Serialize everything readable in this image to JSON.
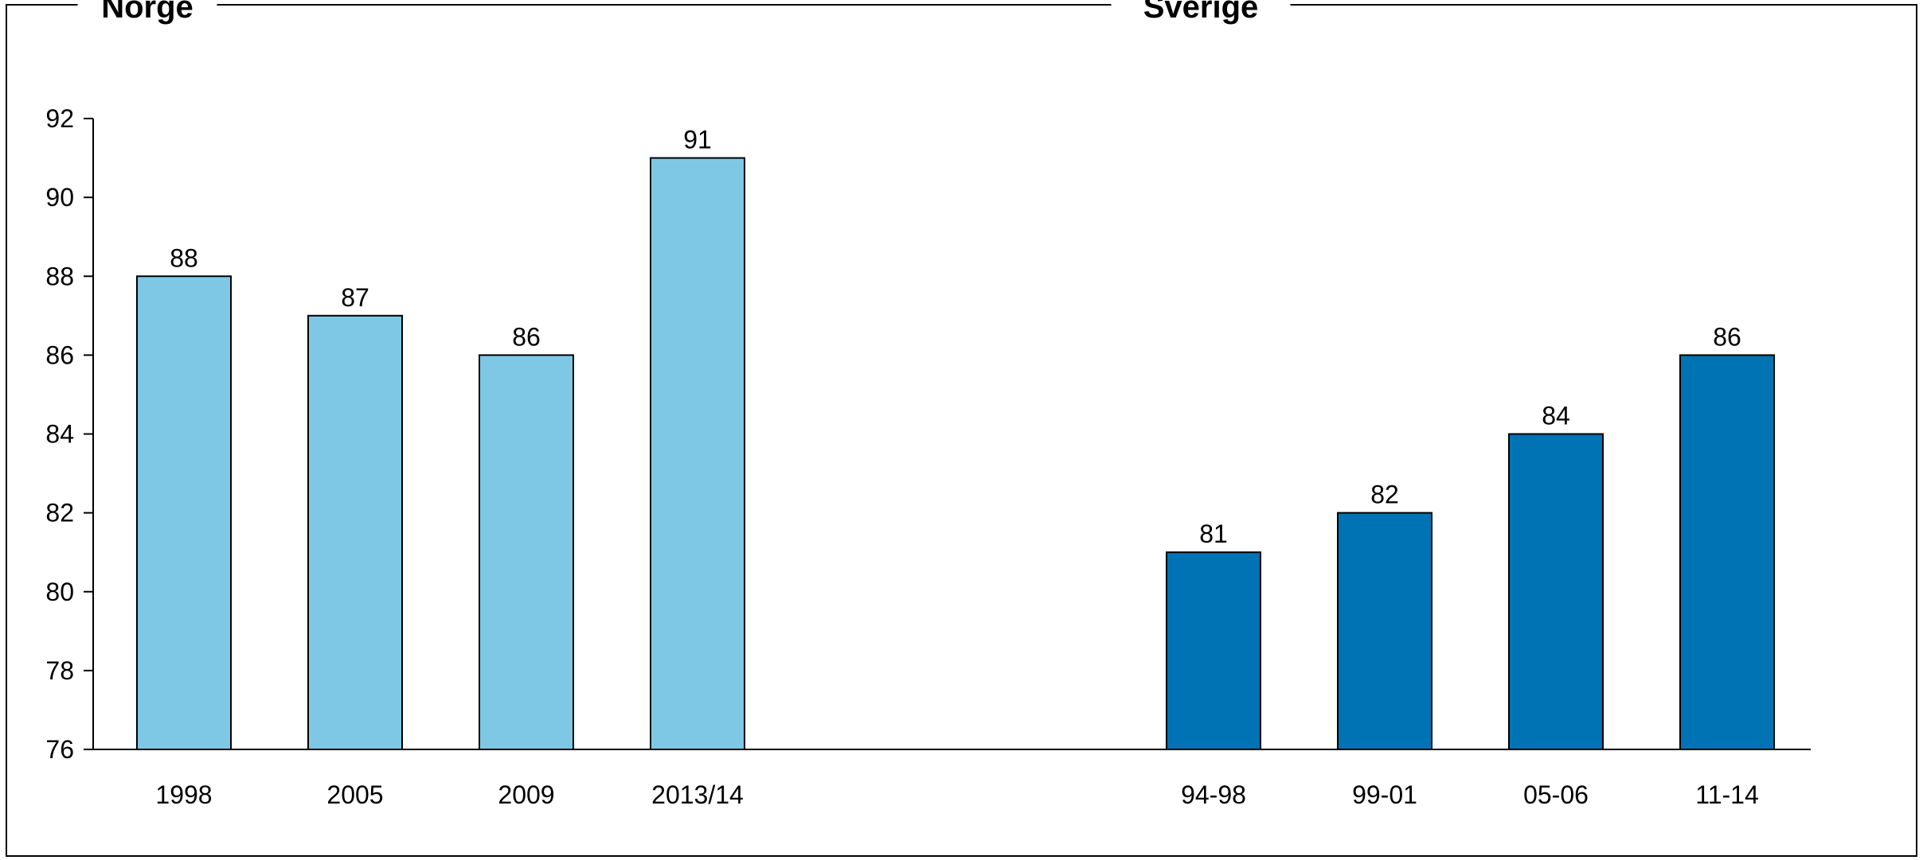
{
  "chart_data": {
    "type": "bar",
    "ylim": [
      76,
      92
    ],
    "yticks": [
      76,
      78,
      80,
      82,
      84,
      86,
      88,
      90,
      92
    ],
    "grid": false,
    "groups": [
      {
        "title": "Norge",
        "color": "#7EC8E6",
        "categories": [
          "1998",
          "2005",
          "2009",
          "2013/14"
        ],
        "values": [
          88,
          87,
          86,
          91
        ]
      },
      {
        "title": "Sverige",
        "color": "#0073B4",
        "categories": [
          "94-98",
          "99-01",
          "05-06",
          "11-14"
        ],
        "values": [
          81,
          82,
          84,
          86
        ]
      }
    ]
  }
}
